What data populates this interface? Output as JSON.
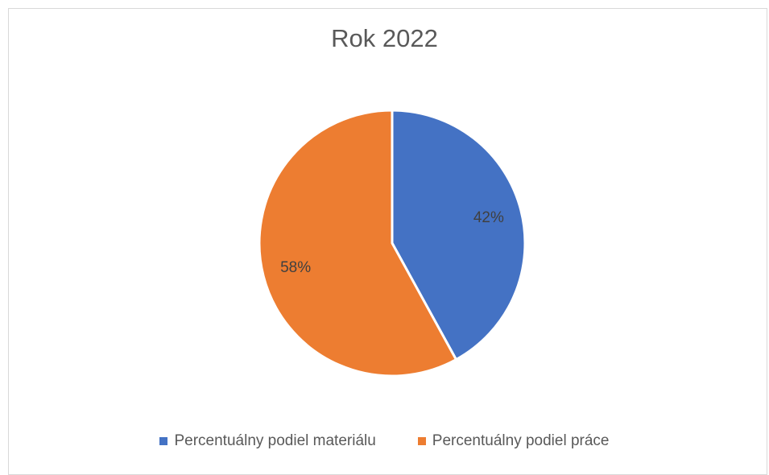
{
  "chart_data": {
    "type": "pie",
    "title": "Rok 2022",
    "categories": [
      "Percentuálny podiel materiálu",
      "Percentuálny podiel práce"
    ],
    "values": [
      42,
      58
    ],
    "labels": [
      "42%",
      "58%"
    ],
    "colors": [
      "#4472C4",
      "#ED7D31"
    ],
    "legend": "bottom"
  }
}
